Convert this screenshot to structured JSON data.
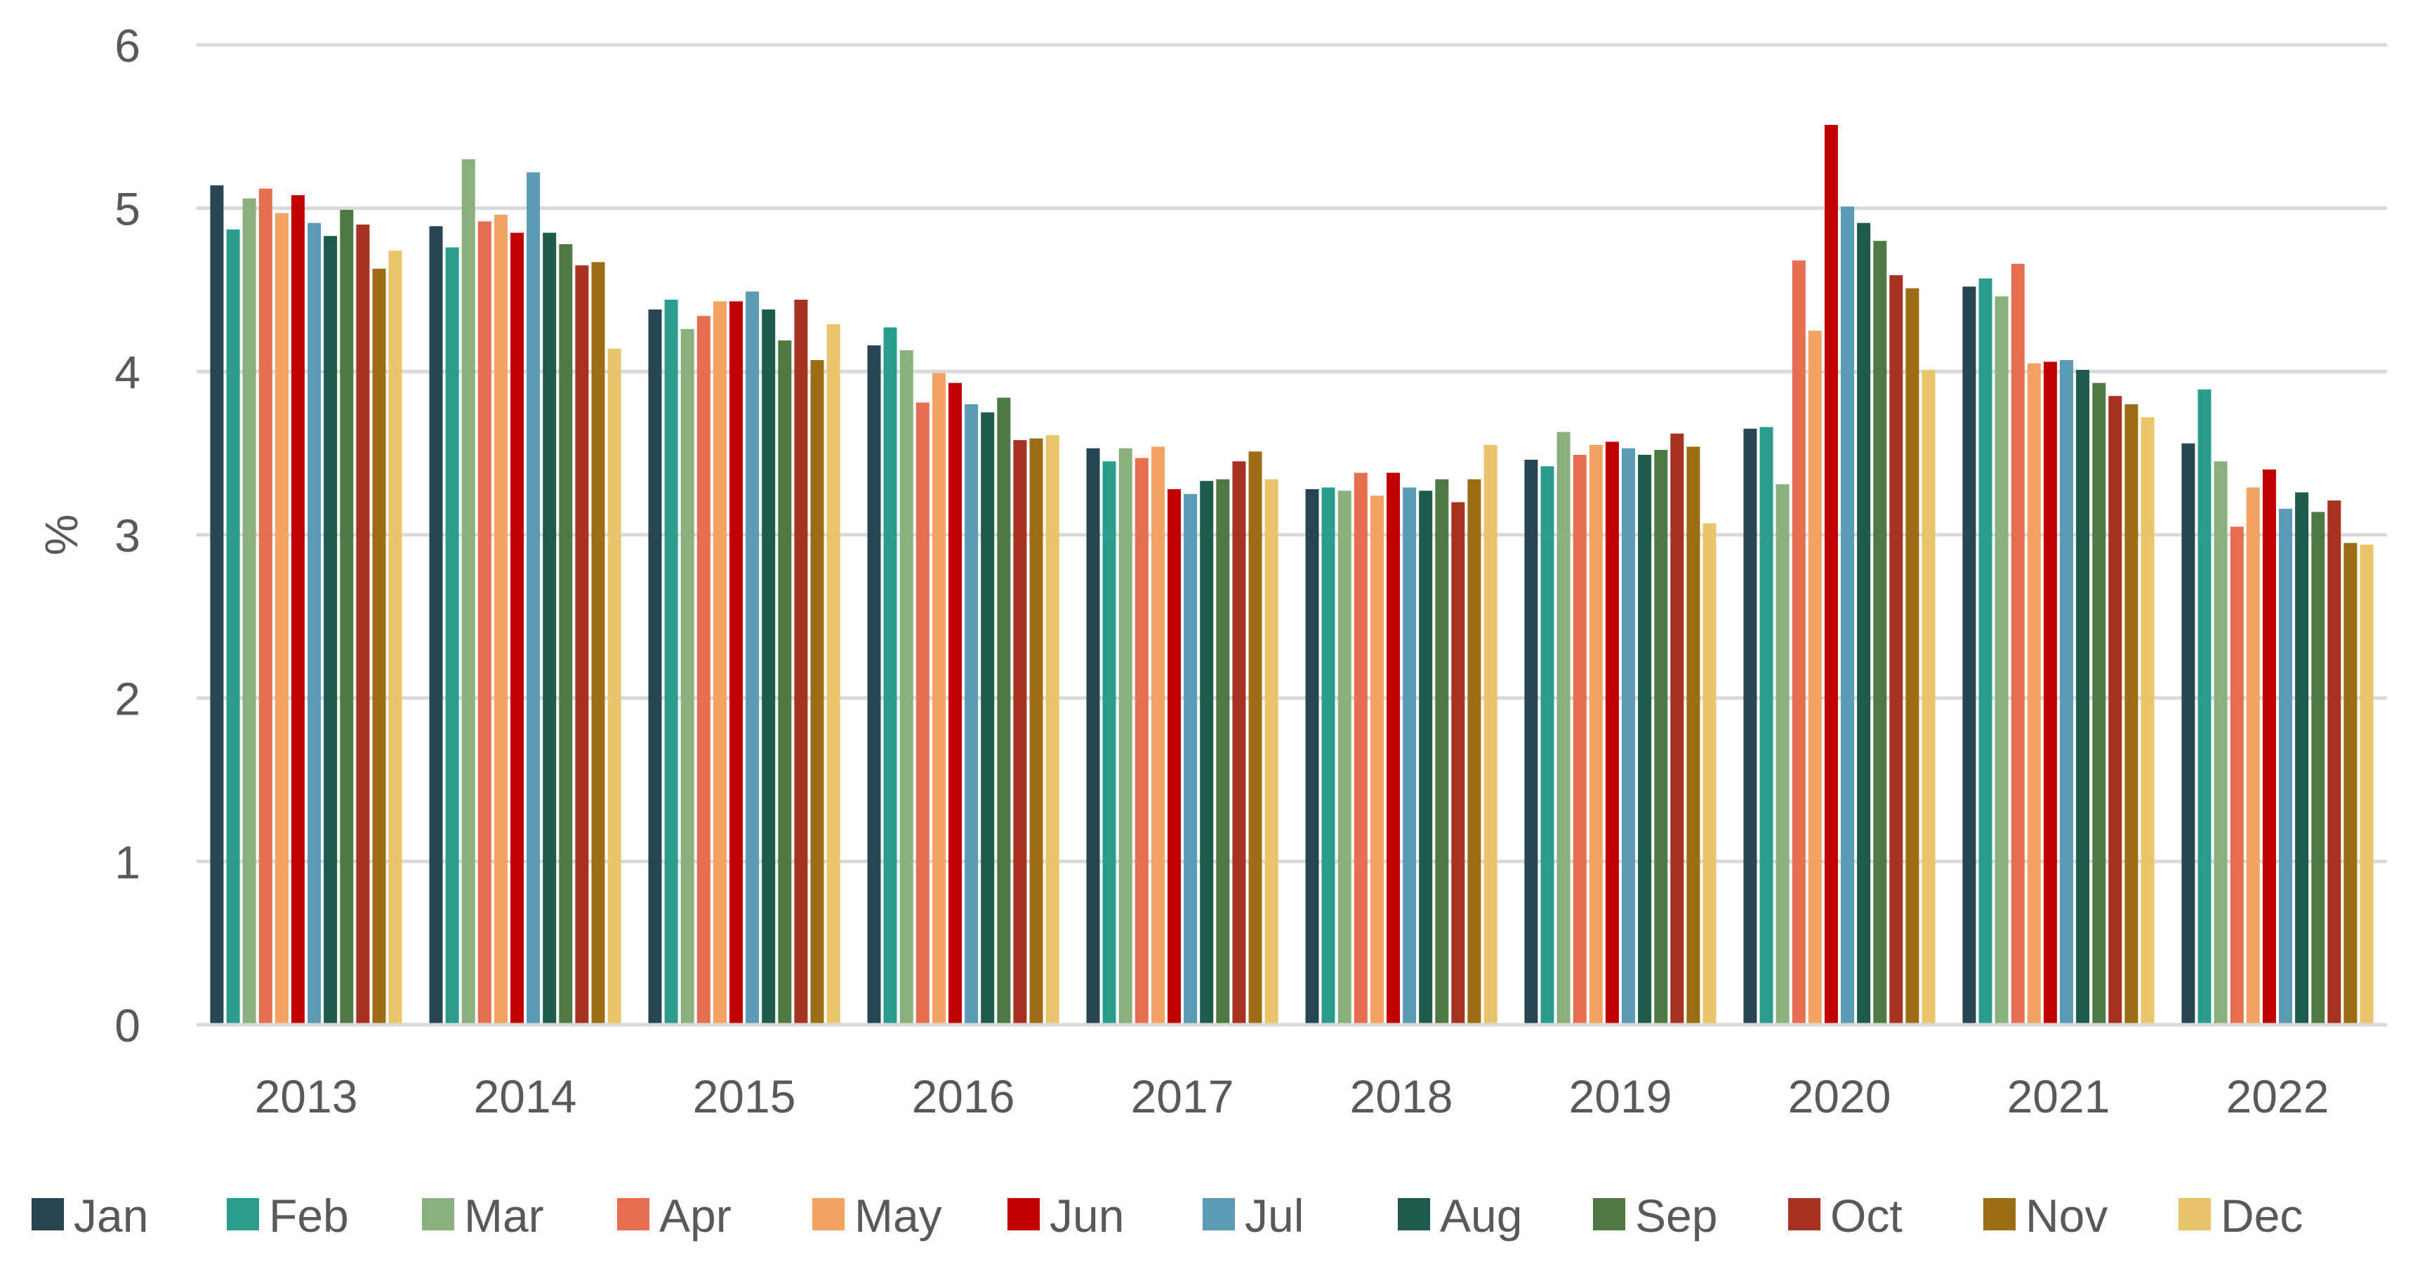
{
  "chart_data": {
    "type": "bar",
    "title": "",
    "xlabel": "",
    "ylabel": "%",
    "ylim": [
      0,
      6
    ],
    "yticks": [
      "0",
      "1",
      "2",
      "3",
      "4",
      "5",
      "6"
    ],
    "grid": true,
    "legend_position": "bottom",
    "categories": [
      "2013",
      "2014",
      "2015",
      "2016",
      "2017",
      "2018",
      "2019",
      "2020",
      "2021",
      "2022"
    ],
    "series": [
      {
        "name": "Jan",
        "color": "#264653",
        "values": [
          5.14,
          4.89,
          4.38,
          4.16,
          3.53,
          3.28,
          3.46,
          3.65,
          4.52,
          3.56
        ]
      },
      {
        "name": "Feb",
        "color": "#2a9d8f",
        "values": [
          4.87,
          4.76,
          4.44,
          4.27,
          3.45,
          3.29,
          3.42,
          3.66,
          4.57,
          3.89
        ]
      },
      {
        "name": "Mar",
        "color": "#8ab17d",
        "values": [
          5.06,
          5.3,
          4.26,
          4.13,
          3.53,
          3.27,
          3.63,
          3.31,
          4.46,
          3.45
        ]
      },
      {
        "name": "Apr",
        "color": "#e76f51",
        "values": [
          5.12,
          4.92,
          4.34,
          3.81,
          3.47,
          3.38,
          3.49,
          4.68,
          4.66,
          3.05
        ]
      },
      {
        "name": "May",
        "color": "#f4a261",
        "values": [
          4.97,
          4.96,
          4.43,
          3.99,
          3.54,
          3.24,
          3.55,
          4.25,
          4.05,
          3.29
        ]
      },
      {
        "name": "Jun",
        "color": "#c00000",
        "values": [
          5.08,
          4.85,
          4.43,
          3.93,
          3.28,
          3.38,
          3.57,
          5.51,
          4.06,
          3.4
        ]
      },
      {
        "name": "Jul",
        "color": "#5b9bb5",
        "values": [
          4.91,
          5.22,
          4.49,
          3.8,
          3.25,
          3.29,
          3.53,
          5.01,
          4.07,
          3.16
        ]
      },
      {
        "name": "Aug",
        "color": "#1d5c4d",
        "values": [
          4.83,
          4.85,
          4.38,
          3.75,
          3.33,
          3.27,
          3.49,
          4.91,
          4.01,
          3.26
        ]
      },
      {
        "name": "Sep",
        "color": "#4f7942",
        "values": [
          4.99,
          4.78,
          4.19,
          3.84,
          3.34,
          3.34,
          3.52,
          4.8,
          3.93,
          3.14
        ]
      },
      {
        "name": "Oct",
        "color": "#a83222",
        "values": [
          4.9,
          4.65,
          4.44,
          3.58,
          3.45,
          3.2,
          3.62,
          4.59,
          3.85,
          3.21
        ]
      },
      {
        "name": "Nov",
        "color": "#9c6d14",
        "values": [
          4.63,
          4.67,
          4.07,
          3.59,
          3.51,
          3.34,
          3.54,
          4.51,
          3.8,
          2.95
        ]
      },
      {
        "name": "Dec",
        "color": "#e9c46a",
        "values": [
          4.74,
          4.14,
          4.29,
          3.61,
          3.34,
          3.55,
          3.07,
          4.01,
          3.72,
          2.94
        ]
      }
    ]
  }
}
